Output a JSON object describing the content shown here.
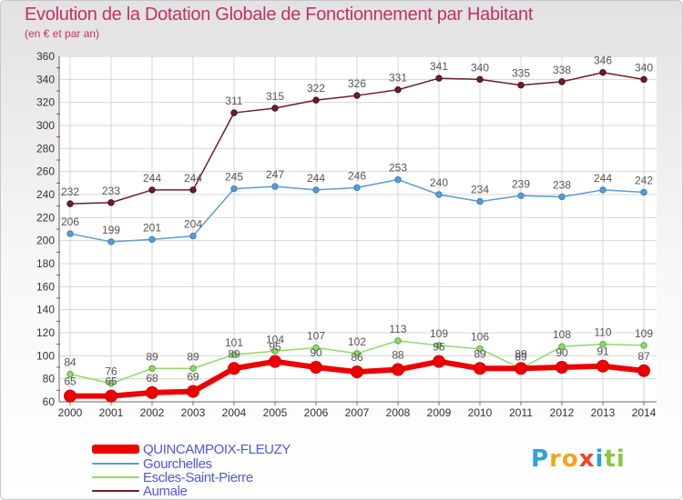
{
  "chart_data": {
    "type": "line",
    "title": "Evolution de la Dotation Globale de Fonctionnement par Habitant",
    "subtitle": "(en € et par an)",
    "xlabel": "",
    "ylabel": "",
    "ylim": [
      60,
      360
    ],
    "yticks": [
      60,
      80,
      100,
      120,
      140,
      160,
      180,
      200,
      220,
      240,
      260,
      280,
      300,
      320,
      340,
      360
    ],
    "grid": true,
    "legend_position": "bottom-left",
    "categories": [
      "2000",
      "2001",
      "2002",
      "2003",
      "2004",
      "2005",
      "2006",
      "2007",
      "2008",
      "2009",
      "2010",
      "2011",
      "2012",
      "2013",
      "2014"
    ],
    "series": [
      {
        "name": "QUINCAMPOIX-FLEUZY",
        "color": "#ee0000",
        "values": [
          65,
          65,
          68,
          69,
          89,
          95,
          90,
          86,
          88,
          95,
          89,
          89,
          90,
          91,
          87
        ]
      },
      {
        "name": "Gourchelles",
        "color": "#5b9bd5",
        "values": [
          206,
          199,
          201,
          204,
          245,
          247,
          244,
          246,
          253,
          240,
          234,
          239,
          238,
          244,
          242
        ]
      },
      {
        "name": "Escles-Saint-Pierre",
        "color": "#8fd96a",
        "values": [
          84,
          76,
          89,
          89,
          101,
          104,
          107,
          102,
          113,
          109,
          106,
          89,
          108,
          110,
          109
        ]
      },
      {
        "name": "Aumale",
        "color": "#6e1e24",
        "values": [
          232,
          233,
          244,
          244,
          311,
          315,
          322,
          326,
          331,
          341,
          340,
          335,
          338,
          346,
          340
        ]
      }
    ]
  },
  "logo": {
    "text": "Proxiti",
    "letters": [
      {
        "ch": "P",
        "color": "#2d9fe0"
      },
      {
        "ch": "r",
        "color": "#f3a51e"
      },
      {
        "ch": "o",
        "color": "#f3a51e"
      },
      {
        "ch": "x",
        "color": "#e8452c"
      },
      {
        "ch": "i",
        "color": "#2d9fe0"
      },
      {
        "ch": "t",
        "color": "#8cc63f"
      },
      {
        "ch": "i",
        "color": "#8cc63f"
      }
    ]
  }
}
